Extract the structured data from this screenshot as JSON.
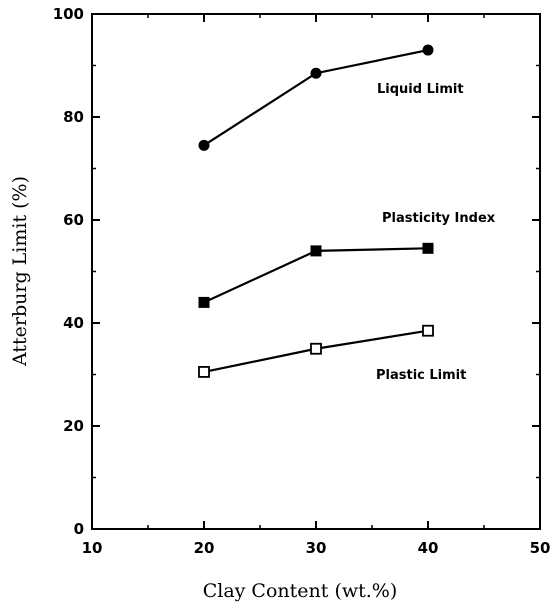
{
  "chart_data": {
    "type": "line",
    "xlabel": "Clay Content (wt.%)",
    "ylabel": "Atterburg Limit (%)",
    "xlim": [
      10,
      50
    ],
    "ylim": [
      0,
      100
    ],
    "x_ticks": [
      10,
      20,
      30,
      40,
      50
    ],
    "y_ticks": [
      0,
      20,
      40,
      60,
      80,
      100
    ],
    "grid": false,
    "legend": "none",
    "x": [
      20,
      30,
      40
    ],
    "series": [
      {
        "name": "Liquid Limit",
        "values": [
          74.5,
          88.5,
          93
        ],
        "marker": "filled-circle",
        "color": "#000000"
      },
      {
        "name": "Plasticity Index",
        "values": [
          44,
          54,
          54.5
        ],
        "marker": "filled-square",
        "color": "#000000"
      },
      {
        "name": "Plastic Limit",
        "values": [
          30.5,
          35,
          38.5
        ],
        "marker": "open-square",
        "color": "#000000"
      }
    ]
  }
}
